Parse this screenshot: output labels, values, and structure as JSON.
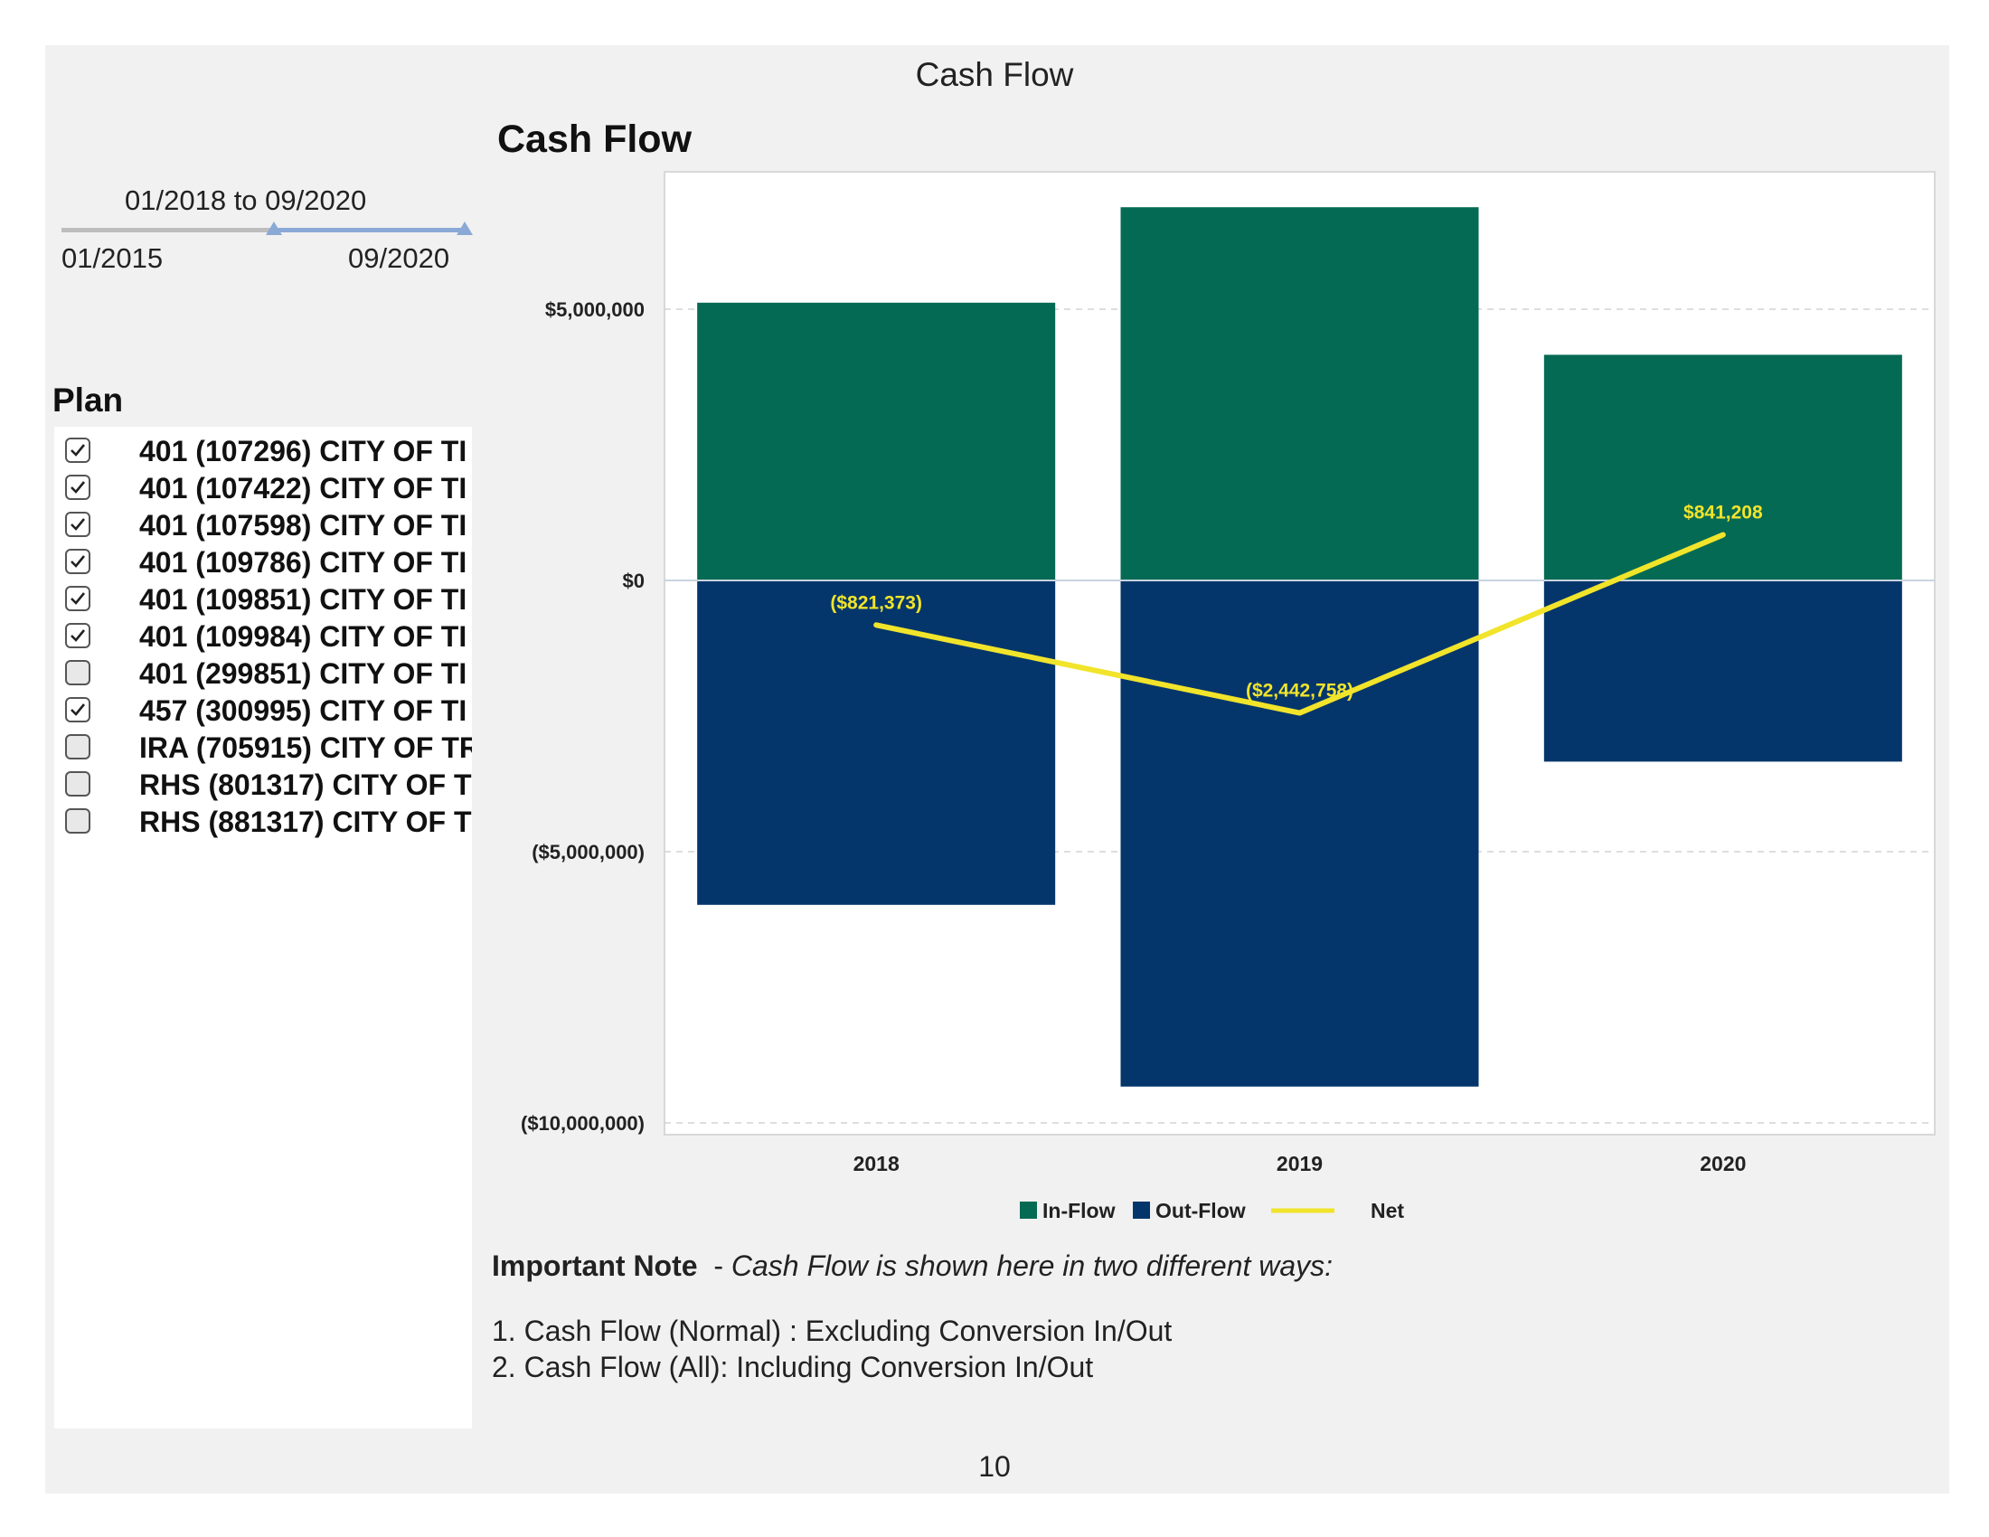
{
  "page": {
    "title": "Cash Flow",
    "page_number": "10"
  },
  "date_filter": {
    "range_start": "01/2018",
    "range_sep": "to",
    "range_end": "09/2020",
    "min_label": "01/2015",
    "max_label": "09/2020"
  },
  "plan_filter": {
    "title": "Plan",
    "items": [
      {
        "label": "401 (107296) CITY OF TI",
        "checked": true
      },
      {
        "label": "401 (107422) CITY OF TI",
        "checked": true
      },
      {
        "label": "401 (107598) CITY OF TI",
        "checked": true
      },
      {
        "label": "401 (109786) CITY OF TI",
        "checked": true
      },
      {
        "label": "401 (109851) CITY OF TI",
        "checked": true
      },
      {
        "label": "401 (109984) CITY OF TI",
        "checked": true
      },
      {
        "label": "401 (299851) CITY OF TI",
        "checked": false
      },
      {
        "label": "457 (300995) CITY OF TI",
        "checked": true
      },
      {
        "label": "IRA (705915) CITY OF TR",
        "checked": false
      },
      {
        "label": "RHS (801317) CITY OF T",
        "checked": false
      },
      {
        "label": "RHS (881317) CITY OF T",
        "checked": false
      }
    ]
  },
  "chart_title": "Cash Flow",
  "chart_data": {
    "type": "bar",
    "categories": [
      "2018",
      "2019",
      "2020"
    ],
    "series": [
      {
        "name": "In-Flow",
        "type": "bar",
        "color": "#046A54",
        "values": [
          5120000,
          6880000,
          4160000
        ]
      },
      {
        "name": "Out-Flow",
        "type": "bar",
        "color": "#04366B",
        "values": [
          -5980000,
          -9330000,
          -3340000
        ]
      },
      {
        "name": "Net",
        "type": "line",
        "color": "#F1E42A",
        "values": [
          -821373,
          -2442758,
          841208
        ],
        "labels": [
          "($821,373)",
          "($2,442,758)",
          "$841,208"
        ]
      }
    ],
    "ylim": [
      -10000000,
      7000000
    ],
    "yticks": [
      {
        "value": 5000000,
        "label": "$5,000,000"
      },
      {
        "value": 0,
        "label": "$0"
      },
      {
        "value": -5000000,
        "label": "($5,000,000)"
      },
      {
        "value": -10000000,
        "label": "($10,000,000)"
      }
    ],
    "grid": "horizontal dashed",
    "legend": "bottom"
  },
  "note": {
    "title": "Important Note",
    "dash": "-",
    "text": "Cash Flow is shown here in two different ways:",
    "line1": "1. Cash Flow (Normal) : Excluding Conversion In/Out",
    "line2": "2. Cash Flow (All): Including Conversion In/Out"
  }
}
